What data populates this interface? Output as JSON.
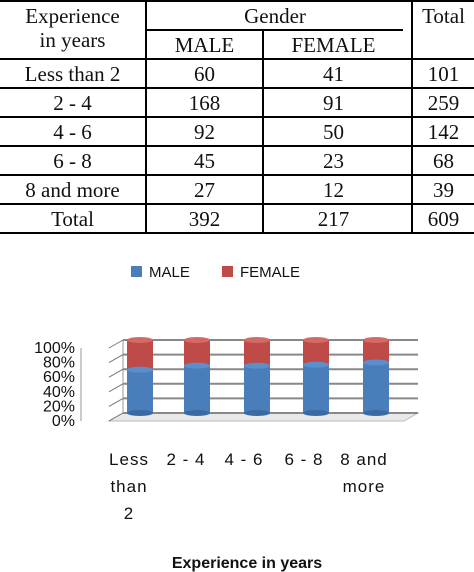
{
  "table": {
    "header": {
      "row_label": [
        "Experience",
        "in years"
      ],
      "group": "Gender",
      "total": "Total",
      "cols": [
        "MALE",
        "FEMALE"
      ]
    },
    "rows": [
      {
        "label": "Less than 2",
        "male": "60",
        "female": "41",
        "total": "101"
      },
      {
        "label": "2 - 4",
        "male": "168",
        "female": "91",
        "total": "259"
      },
      {
        "label": "4 - 6",
        "male": "92",
        "female": "50",
        "total": "142"
      },
      {
        "label": "6 - 8",
        "male": "45",
        "female": "23",
        "total": "68"
      },
      {
        "label": "8 and more",
        "male": "27",
        "female": "12",
        "total": "39"
      }
    ],
    "total_row": {
      "label": "Total",
      "male": "392",
      "female": "217",
      "total": "609"
    }
  },
  "chart_data": {
    "type": "bar",
    "stacked": "percent",
    "categories": [
      "Less than 2",
      "2 - 4",
      "4 - 6",
      "6 - 8",
      "8 and more"
    ],
    "category_lines": [
      [
        "Less",
        "than",
        "2"
      ],
      [
        "2 - 4"
      ],
      [
        "4 - 6"
      ],
      [
        "6 - 8"
      ],
      [
        "8 and",
        "more"
      ]
    ],
    "series": [
      {
        "name": "MALE",
        "values": [
          60,
          168,
          92,
          45,
          27
        ],
        "color": "#4a7ebb"
      },
      {
        "name": "FEMALE",
        "values": [
          41,
          91,
          50,
          23,
          12
        ],
        "color": "#be4b48"
      }
    ],
    "xlabel": "Experience in years",
    "ylabel": "",
    "ylim": [
      0,
      100
    ],
    "yticks": [
      "0%",
      "20%",
      "40%",
      "60%",
      "80%",
      "100%"
    ],
    "legend": "top",
    "grid": true
  }
}
